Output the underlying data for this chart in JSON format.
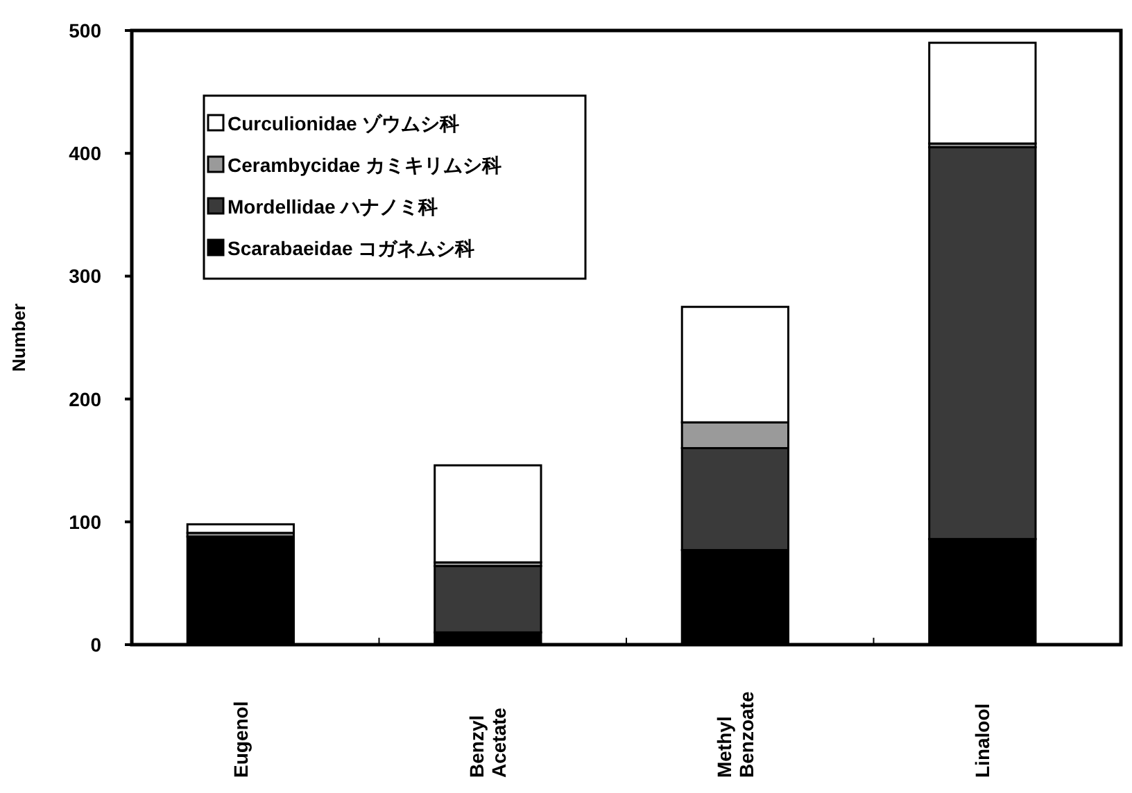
{
  "chart_data": {
    "type": "bar",
    "stacked": true,
    "ylabel": "Number",
    "categories": [
      "Eugenol",
      "Benzyl\nAcetate",
      "Methyl\nBenzoate",
      "Linalool"
    ],
    "series": [
      {
        "name": "Scarabaeidae コガネムシ科",
        "color": "#000000",
        "values": [
          88,
          10,
          77,
          86
        ]
      },
      {
        "name": "Mordellidae ハナノミ科",
        "color": "#3a3a3a",
        "values": [
          0,
          54,
          83,
          319
        ]
      },
      {
        "name": "Cerambycidae カミキリムシ科",
        "color": "#9a9a9a",
        "values": [
          3,
          3,
          21,
          3
        ]
      },
      {
        "name": "Curculionidae ゾウムシ科",
        "color": "#ffffff",
        "values": [
          7,
          79,
          94,
          82
        ]
      }
    ],
    "ylim": [
      0,
      500
    ],
    "yticks": [
      0,
      100,
      200,
      300,
      400,
      500
    ],
    "grid": false,
    "legend": "top left"
  }
}
